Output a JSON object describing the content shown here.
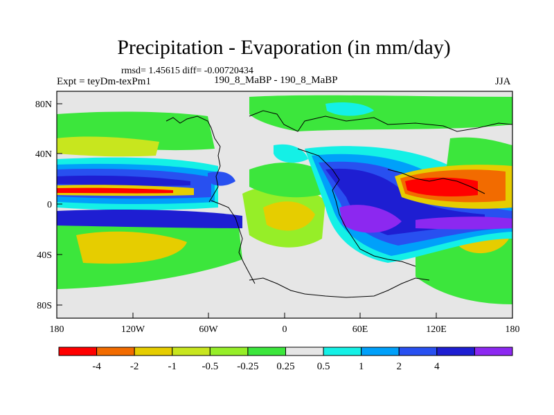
{
  "title": "Precipitation - Evaporation (in mm/day)",
  "stats": "rmsd= 1.45615 diff= -0.00720434",
  "experiment": "Expt = teyDm-texPm1",
  "runs": "190_8_MaBP - 190_8_MaBP",
  "season": "JJA",
  "map": {
    "lon_ticks": [
      "180",
      "120W",
      "60W",
      "0",
      "60E",
      "120E",
      "180"
    ],
    "lat_ticks": [
      "80N",
      "40N",
      "0",
      "40S",
      "80S"
    ]
  },
  "colorbar": {
    "colors": [
      "#ff0000",
      "#f26b00",
      "#e6cd00",
      "#c8e61e",
      "#96ee28",
      "#3ce63c",
      "#e6e6e6",
      "#14f0e6",
      "#00a0fa",
      "#2850f0",
      "#1e1ed2",
      "#8c28f0"
    ],
    "labels": [
      "-4",
      "-2",
      "-1",
      "-0.5",
      "-0.25",
      "0.25",
      "0.5",
      "1",
      "2",
      "4"
    ]
  }
}
